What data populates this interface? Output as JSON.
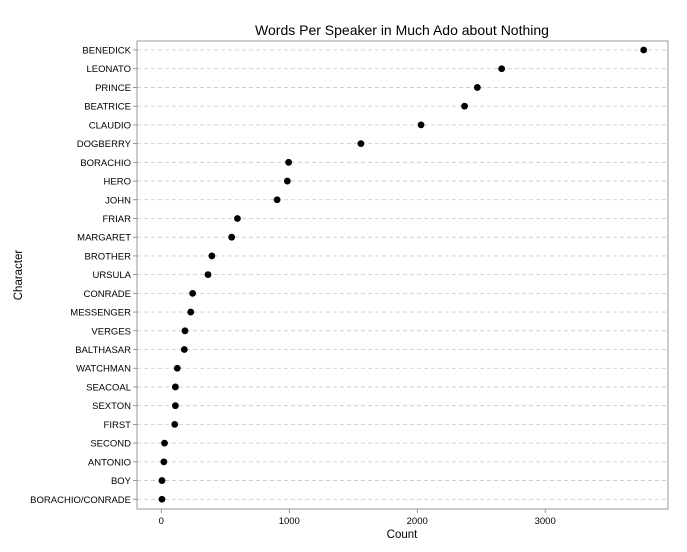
{
  "chart_data": {
    "type": "scatter",
    "title": "Words Per Speaker in Much Ado about Nothing",
    "xlabel": "Count",
    "ylabel": "Character",
    "xlim": [
      -190,
      3960
    ],
    "x_ticks": [
      0,
      1000,
      2000,
      3000
    ],
    "grid": "horizontal-dashed",
    "categories": [
      "BENEDICK",
      "LEONATO",
      "PRINCE",
      "BEATRICE",
      "CLAUDIO",
      "DOGBERRY",
      "BORACHIO",
      "HERO",
      "JOHN",
      "FRIAR",
      "MARGARET",
      "BROTHER",
      "URSULA",
      "CONRADE",
      "MESSENGER",
      "VERGES",
      "BALTHASAR",
      "WATCHMAN",
      "SEACOAL",
      "SEXTON",
      "FIRST",
      "SECOND",
      "ANTONIO",
      "BOY",
      "BORACHIO/CONRADE"
    ],
    "values": [
      3770,
      2660,
      2470,
      2370,
      2030,
      1560,
      995,
      985,
      905,
      595,
      550,
      395,
      365,
      245,
      230,
      185,
      180,
      125,
      110,
      110,
      105,
      25,
      20,
      5,
      5
    ]
  }
}
